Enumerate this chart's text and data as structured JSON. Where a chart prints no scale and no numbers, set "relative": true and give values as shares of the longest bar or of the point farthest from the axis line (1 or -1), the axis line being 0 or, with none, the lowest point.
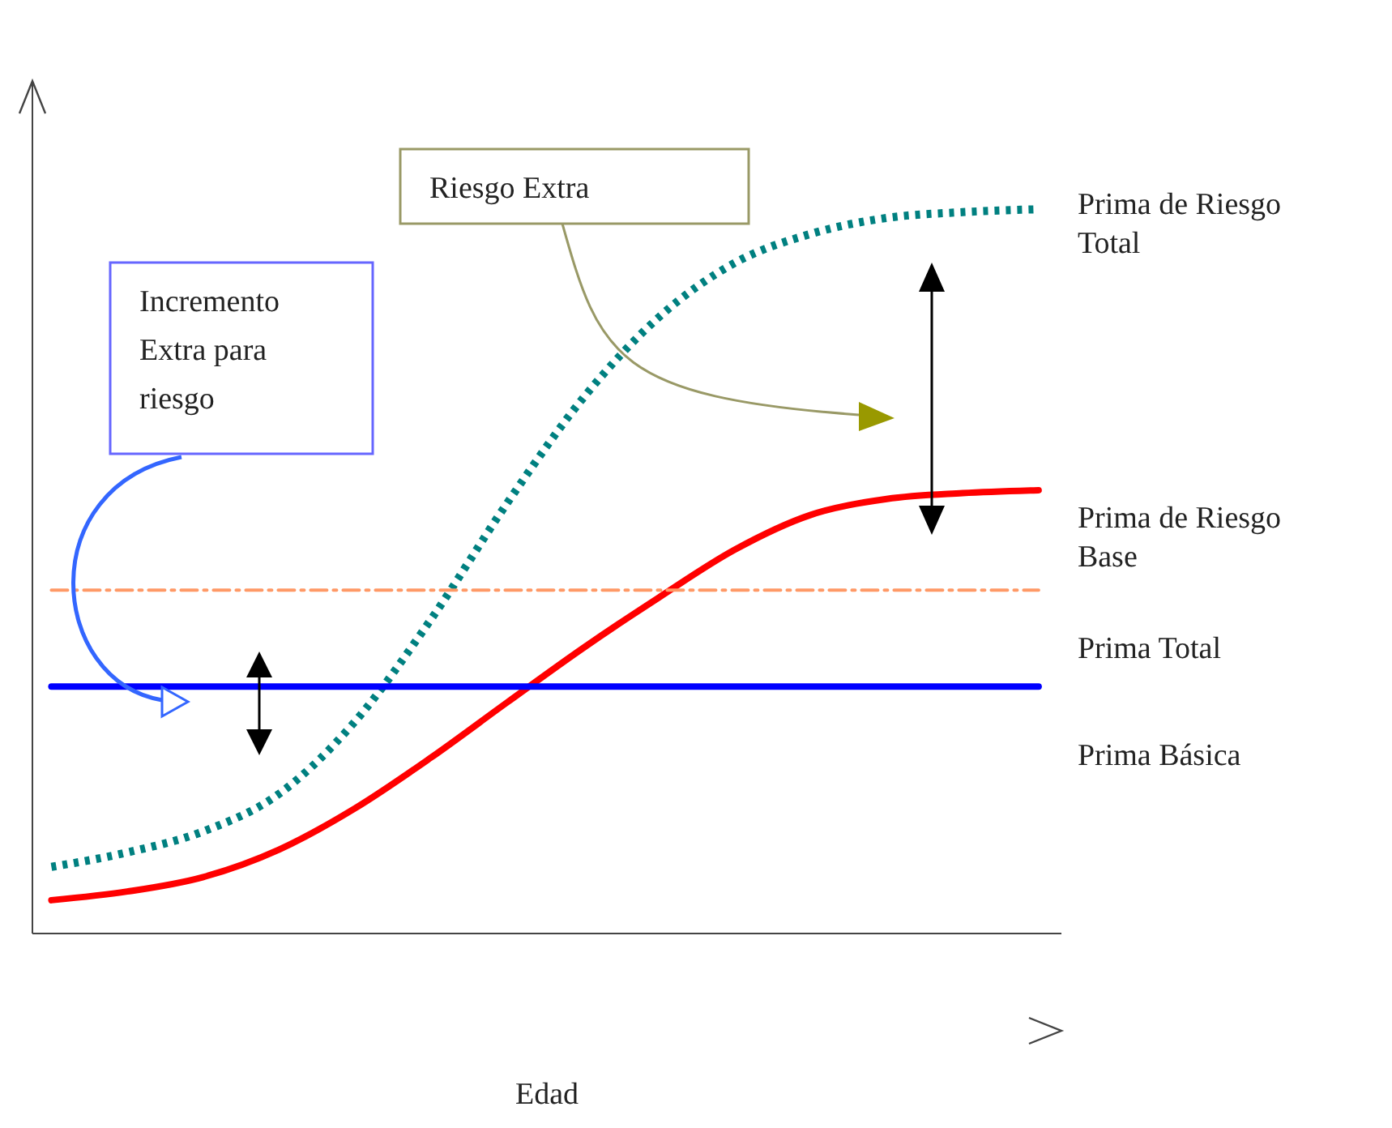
{
  "chart_data": {
    "type": "line",
    "relative": true,
    "xlabel": "Edad",
    "categories": [
      null,
      null,
      null,
      null,
      null,
      null,
      null,
      null,
      null,
      null,
      null,
      null,
      null,
      null
    ],
    "series": [
      {
        "name": "Prima de Riesgo Total",
        "color": "#008080",
        "line_style": "dotted",
        "values": [
          0.092,
          0.112,
          0.141,
          0.193,
          0.293,
          0.434,
          0.594,
          0.739,
          0.851,
          0.926,
          0.966,
          0.988,
          0.996,
          1.0
        ]
      },
      {
        "name": "Prima de Riesgo Base",
        "color": "#ff0000",
        "line_style": "solid",
        "values": [
          0.046,
          0.058,
          0.078,
          0.116,
          0.173,
          0.243,
          0.319,
          0.394,
          0.464,
          0.53,
          0.578,
          0.6,
          0.608,
          0.612
        ]
      },
      {
        "name": "Prima Total",
        "color": "#ff9966",
        "line_style": "dashed",
        "values": [
          0.474,
          0.474,
          0.474,
          0.474,
          0.474,
          0.474,
          0.474,
          0.474,
          0.474,
          0.474,
          0.474,
          0.474,
          0.474,
          0.474
        ]
      },
      {
        "name": "Prima Básica",
        "color": "#0000ff",
        "line_style": "solid",
        "values": [
          0.341,
          0.341,
          0.341,
          0.341,
          0.341,
          0.341,
          0.341,
          0.341,
          0.341,
          0.341,
          0.341,
          0.341,
          0.341,
          0.341
        ]
      }
    ],
    "annotations": [
      "Riesgo Extra",
      "Incremento Extra para riesgo"
    ],
    "legend": false,
    "grid": false,
    "marker": "none"
  }
}
